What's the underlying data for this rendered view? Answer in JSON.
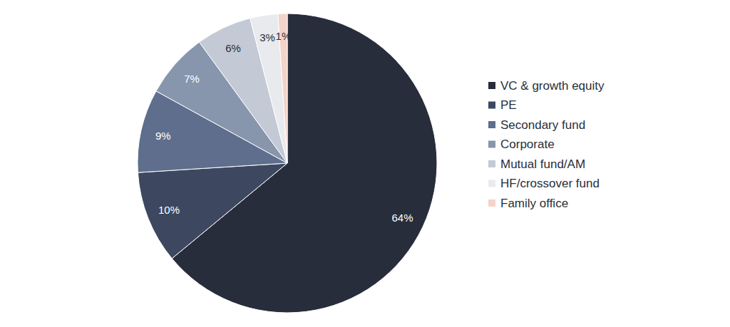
{
  "chart_data": {
    "type": "pie",
    "categories": [
      "VC & growth equity",
      "PE",
      "Secondary fund",
      "Corporate",
      "Mutual fund/AM",
      "HF/crossover fund",
      "Family office"
    ],
    "values": [
      64,
      10,
      9,
      7,
      6,
      3,
      1
    ],
    "value_labels": [
      "64%",
      "10%",
      "9%",
      "7%",
      "6%",
      "3%",
      "1%"
    ],
    "colors": [
      "#272d3b",
      "#3d4860",
      "#5f6e8c",
      "#8795ad",
      "#c3c9d5",
      "#e8eaee",
      "#f4d3c9"
    ],
    "data_labels": true,
    "legend": "right"
  }
}
